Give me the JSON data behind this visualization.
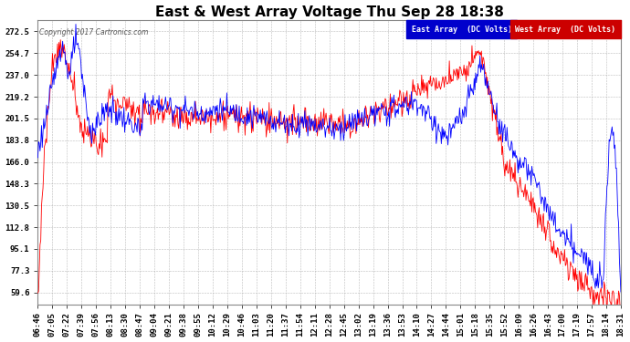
{
  "title": "East & West Array Voltage Thu Sep 28 18:38",
  "copyright": "Copyright 2017 Cartronics.com",
  "legend_east": "East Array  (DC Volts)",
  "legend_west": "West Array  (DC Volts)",
  "east_color": "#0000ff",
  "west_color": "#ff0000",
  "east_legend_bg": "#0000cc",
  "west_legend_bg": "#cc0000",
  "plot_bg": "#ffffff",
  "fig_bg": "#ffffff",
  "yticks": [
    59.6,
    77.3,
    95.1,
    112.8,
    130.5,
    148.3,
    166.0,
    183.8,
    201.5,
    219.2,
    237.0,
    254.7,
    272.5
  ],
  "ylim": [
    50.0,
    282.0
  ],
  "grid_color": "#aaaaaa",
  "title_fontsize": 11,
  "tick_fontsize": 6.5,
  "x_labels": [
    "06:46",
    "07:05",
    "07:22",
    "07:39",
    "07:56",
    "08:13",
    "08:30",
    "08:47",
    "09:04",
    "09:21",
    "09:38",
    "09:55",
    "10:12",
    "10:29",
    "10:46",
    "11:03",
    "11:20",
    "11:37",
    "11:54",
    "12:11",
    "12:28",
    "12:45",
    "13:02",
    "13:19",
    "13:36",
    "13:53",
    "14:10",
    "14:27",
    "14:44",
    "15:01",
    "15:18",
    "15:35",
    "15:52",
    "16:09",
    "16:26",
    "16:43",
    "17:00",
    "17:19",
    "17:57",
    "18:14",
    "18:31"
  ]
}
